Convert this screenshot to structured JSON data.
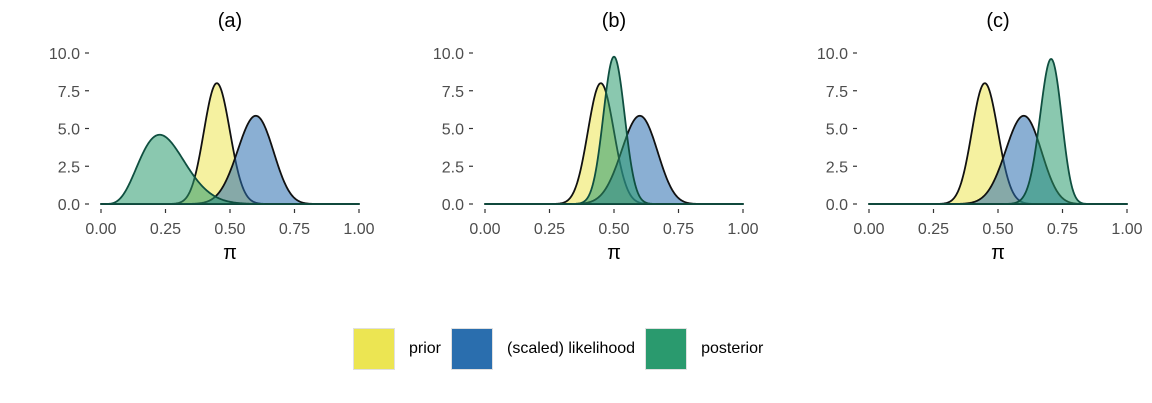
{
  "chart_data": [
    {
      "type": "area",
      "title": "(a)",
      "xlabel": "π",
      "ylabel": "",
      "xlim": [
        0,
        1
      ],
      "ylim": [
        0,
        10
      ],
      "xticks": [
        "0.00",
        "0.25",
        "0.50",
        "0.75",
        "1.00"
      ],
      "yticks": [
        "0.0",
        "2.5",
        "5.0",
        "7.5",
        "10.0"
      ],
      "series": [
        {
          "name": "prior",
          "distribution": "beta",
          "params": [
            45,
            55
          ],
          "peak": [
            0.45,
            8.0
          ]
        },
        {
          "name": "(scaled) likelihood",
          "distribution": "beta",
          "params": [
            31,
            21
          ],
          "peak": [
            0.6,
            5.8
          ]
        },
        {
          "name": "posterior",
          "distribution": "beta",
          "params": [
            6,
            18
          ],
          "peak": [
            0.23,
            4.9
          ]
        }
      ]
    },
    {
      "type": "area",
      "title": "(b)",
      "xlabel": "π",
      "ylabel": "",
      "xlim": [
        0,
        1
      ],
      "ylim": [
        0,
        10
      ],
      "xticks": [
        "0.00",
        "0.25",
        "0.50",
        "0.75",
        "1.00"
      ],
      "yticks": [
        "0.0",
        "2.5",
        "5.0",
        "7.5",
        "10.0"
      ],
      "series": [
        {
          "name": "prior",
          "distribution": "beta",
          "params": [
            45,
            55
          ],
          "peak": [
            0.45,
            8.0
          ]
        },
        {
          "name": "(scaled) likelihood",
          "distribution": "beta",
          "params": [
            31,
            21
          ],
          "peak": [
            0.6,
            5.8
          ]
        },
        {
          "name": "posterior",
          "distribution": "beta",
          "params": [
            75,
            75
          ],
          "peak": [
            0.5,
            9.7
          ]
        }
      ]
    },
    {
      "type": "area",
      "title": "(c)",
      "xlabel": "π",
      "ylabel": "",
      "xlim": [
        0,
        1
      ],
      "ylim": [
        0,
        10
      ],
      "xticks": [
        "0.00",
        "0.25",
        "0.50",
        "0.75",
        "1.00"
      ],
      "yticks": [
        "0.0",
        "2.5",
        "5.0",
        "7.5",
        "10.0"
      ],
      "series": [
        {
          "name": "prior",
          "distribution": "beta",
          "params": [
            45,
            55
          ],
          "peak": [
            0.45,
            8.0
          ]
        },
        {
          "name": "(scaled) likelihood",
          "distribution": "beta",
          "params": [
            31,
            21
          ],
          "peak": [
            0.6,
            5.8
          ]
        },
        {
          "name": "posterior",
          "distribution": "beta",
          "params": [
            85,
            36
          ],
          "peak": [
            0.71,
            8.7
          ]
        }
      ]
    }
  ],
  "legend": {
    "placement": "bottom",
    "items": [
      {
        "label": "prior",
        "color": "#ece552"
      },
      {
        "label": "(scaled) likelihood",
        "color": "#2a6eae"
      },
      {
        "label": "posterior",
        "color": "#2a9a6e"
      }
    ]
  },
  "colors": {
    "prior": "#ece552",
    "likelihood": "#2a6eae",
    "posterior": "#2a9a6e",
    "outline": "#111111",
    "posterior_outline": "#0f4f40"
  }
}
